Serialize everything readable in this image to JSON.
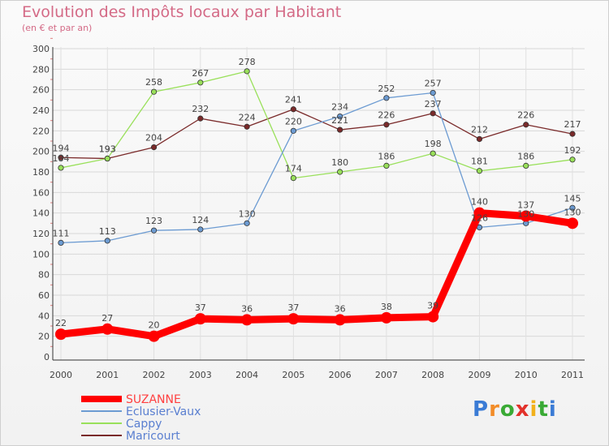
{
  "title": "Evolution des Impôts locaux par Habitant",
  "subtitle": "(en € et par an)",
  "logo": "Proxiti",
  "chart_data": {
    "type": "line",
    "x": [
      "2000",
      "2001",
      "2002",
      "2003",
      "2004",
      "2005",
      "2006",
      "2007",
      "2008",
      "2009",
      "2010",
      "2011"
    ],
    "ylim": [
      0,
      300
    ],
    "ystep": 20,
    "grid": true,
    "legend_position": "bottom-left",
    "series": [
      {
        "name": "SUZANNE",
        "color": "#ff0000",
        "values": [
          22,
          27,
          20,
          37,
          36,
          37,
          36,
          38,
          39,
          140,
          137,
          130
        ]
      },
      {
        "name": "Eclusier-Vaux",
        "color": "#6c9bd2",
        "values": [
          111,
          113,
          123,
          124,
          130,
          220,
          234,
          252,
          257,
          126,
          130,
          145
        ]
      },
      {
        "name": "Cappy",
        "color": "#99e05a",
        "values": [
          184,
          193,
          258,
          267,
          278,
          174,
          180,
          186,
          198,
          181,
          186,
          192
        ]
      },
      {
        "name": "Maricourt",
        "color": "#7a2a2a",
        "values": [
          194,
          193,
          204,
          232,
          224,
          241,
          221,
          226,
          237,
          212,
          226,
          217
        ]
      }
    ]
  }
}
